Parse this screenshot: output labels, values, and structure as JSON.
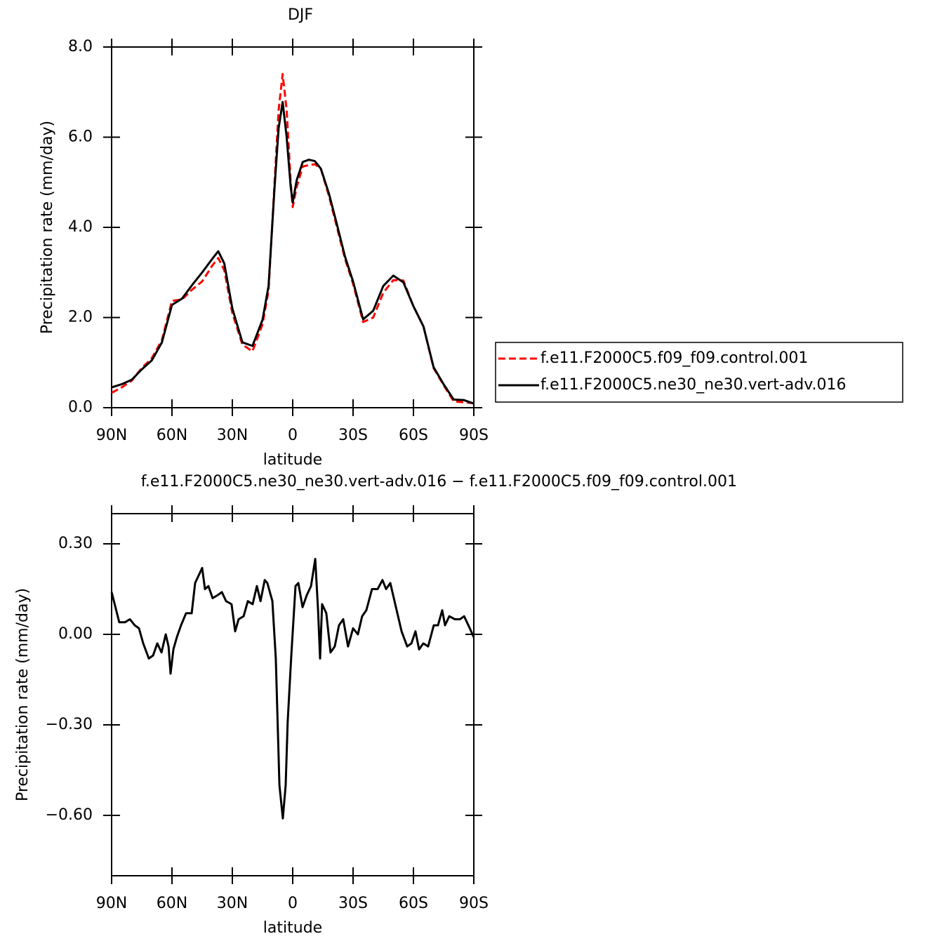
{
  "chart_data": [
    {
      "type": "line",
      "title": "DJF",
      "x_label": "latitude",
      "y_label": "Precipitation rate (mm/day)",
      "x": [
        90,
        85,
        80,
        75,
        70,
        65,
        60,
        55,
        50,
        45,
        40,
        37,
        34,
        30,
        25,
        20,
        15,
        12,
        9,
        7,
        5,
        3,
        1,
        0,
        -2,
        -5,
        -8,
        -11,
        -14,
        -18,
        -22,
        -26,
        -30,
        -35,
        -40,
        -45,
        -50,
        -55,
        -60,
        -65,
        -70,
        -75,
        -80,
        -85,
        -90
      ],
      "series": [
        {
          "name": "f.e11.F2000C5.f09_f09.control.001",
          "color": "#ff0000",
          "line_style": "dashed",
          "values": [
            0.33,
            0.45,
            0.6,
            0.88,
            1.1,
            1.5,
            2.37,
            2.4,
            2.62,
            2.8,
            3.15,
            3.32,
            3.05,
            2.1,
            1.4,
            1.25,
            1.85,
            2.6,
            5.0,
            6.6,
            7.4,
            6.6,
            5.0,
            4.45,
            4.9,
            5.35,
            5.38,
            5.4,
            5.3,
            4.7,
            4.0,
            3.3,
            2.75,
            1.9,
            2.0,
            2.55,
            2.83,
            2.82,
            2.25,
            1.8,
            0.88,
            0.5,
            0.14,
            0.12,
            0.1
          ]
        },
        {
          "name": "f.e11.F2000C5.ne30_ne30.vert-adv.016",
          "color": "#000000",
          "line_style": "solid",
          "values": [
            0.45,
            0.52,
            0.62,
            0.85,
            1.05,
            1.45,
            2.28,
            2.42,
            2.72,
            3.0,
            3.3,
            3.47,
            3.2,
            2.2,
            1.45,
            1.37,
            1.95,
            2.7,
            4.9,
            6.2,
            6.78,
            6.0,
            4.9,
            4.55,
            5.05,
            5.45,
            5.5,
            5.47,
            5.3,
            4.75,
            4.06,
            3.35,
            2.8,
            1.96,
            2.15,
            2.7,
            2.93,
            2.78,
            2.25,
            1.8,
            0.9,
            0.52,
            0.18,
            0.17,
            0.09
          ]
        }
      ],
      "xlim": [
        90,
        -90
      ],
      "xticks": [
        {
          "value": 90,
          "label": "90N"
        },
        {
          "value": 60,
          "label": "60N"
        },
        {
          "value": 30,
          "label": "30N"
        },
        0,
        {
          "value": -30,
          "label": "30S"
        },
        {
          "value": -60,
          "label": "60S"
        },
        {
          "value": -90,
          "label": "90S"
        }
      ],
      "ylim": [
        0,
        8
      ],
      "yticks": [
        {
          "value": 0,
          "label": "0.0"
        },
        {
          "value": 2,
          "label": "2.0"
        },
        {
          "value": 4,
          "label": "4.0"
        },
        {
          "value": 6,
          "label": "6.0"
        },
        {
          "value": 8,
          "label": "8.0"
        }
      ],
      "legend": "right"
    },
    {
      "type": "line",
      "title": "f.e11.F2000C5.ne30_ne30.vert-adv.016 − f.e11.F2000C5.f09_f09.control.001",
      "x_label": "latitude",
      "y_label": "Precipitation rate (mm/day)",
      "x": [
        90,
        86.2,
        83.4,
        80.9,
        78.5,
        76.4,
        74.3,
        71.5,
        69.4,
        67.3,
        65.2,
        63.1,
        61.7,
        60.7,
        59.3,
        57.6,
        55.5,
        53,
        50.2,
        48.5,
        46.4,
        45,
        43.6,
        41.9,
        39.8,
        37.3,
        35.2,
        33.1,
        30.4,
        28.6,
        26.9,
        24.4,
        22.3,
        19.9,
        17.8,
        16,
        13.9,
        12.6,
        10.1,
        8.4,
        6.6,
        4.9,
        3.5,
        2.5,
        0.7,
        -1.4,
        -2.8,
        -4.9,
        -7,
        -9.1,
        -11.2,
        -12.6,
        -13.6,
        -14.6,
        -16.7,
        -18.8,
        -20.9,
        -23,
        -25.1,
        -27.5,
        -30,
        -32.4,
        -34.5,
        -36.6,
        -39.4,
        -42.2,
        -44.6,
        -46.4,
        -48.5,
        -51.3,
        -54.1,
        -56.9,
        -59,
        -61,
        -62.8,
        -64.9,
        -67.3,
        -70.1,
        -72.2,
        -74.3,
        -75.7,
        -77.8,
        -80.6,
        -83.1,
        -85.2,
        -88,
        -90
      ],
      "series": [
        {
          "color": "#000000",
          "line_style": "solid",
          "values": [
            0.14,
            0.04,
            0.04,
            0.05,
            0.03,
            0.02,
            -0.03,
            -0.08,
            -0.07,
            -0.03,
            -0.06,
            0.0,
            -0.04,
            -0.13,
            -0.05,
            -0.01,
            0.03,
            0.07,
            0.07,
            0.17,
            0.2,
            0.22,
            0.15,
            0.16,
            0.12,
            0.13,
            0.14,
            0.11,
            0.1,
            0.01,
            0.05,
            0.06,
            0.11,
            0.1,
            0.16,
            0.11,
            0.18,
            0.17,
            0.11,
            -0.08,
            -0.5,
            -0.61,
            -0.5,
            -0.29,
            -0.07,
            0.16,
            0.17,
            0.09,
            0.13,
            0.16,
            0.25,
            0.08,
            -0.08,
            0.1,
            0.07,
            -0.06,
            -0.04,
            0.03,
            0.05,
            -0.04,
            0.02,
            0.0,
            0.06,
            0.08,
            0.15,
            0.15,
            0.18,
            0.15,
            0.17,
            0.09,
            0.01,
            -0.04,
            -0.03,
            0.01,
            -0.05,
            -0.03,
            -0.04,
            0.03,
            0.03,
            0.08,
            0.03,
            0.06,
            0.05,
            0.05,
            0.06,
            0.02,
            -0.01
          ]
        }
      ],
      "xlim": [
        90,
        -90
      ],
      "xticks": [
        {
          "value": 90,
          "label": "90N"
        },
        {
          "value": 60,
          "label": "60N"
        },
        {
          "value": 30,
          "label": "30N"
        },
        0,
        {
          "value": -30,
          "label": "30S"
        },
        {
          "value": -60,
          "label": "60S"
        },
        {
          "value": -90,
          "label": "90S"
        }
      ],
      "ylim": [
        -0.8,
        0.4
      ],
      "yticks": [
        {
          "value": 0.3,
          "label": "0.30"
        },
        {
          "value": 0,
          "label": "0.00"
        },
        {
          "value": -0.3,
          "label": "−0.30"
        },
        {
          "value": -0.6,
          "label": "−0.60"
        }
      ]
    }
  ]
}
